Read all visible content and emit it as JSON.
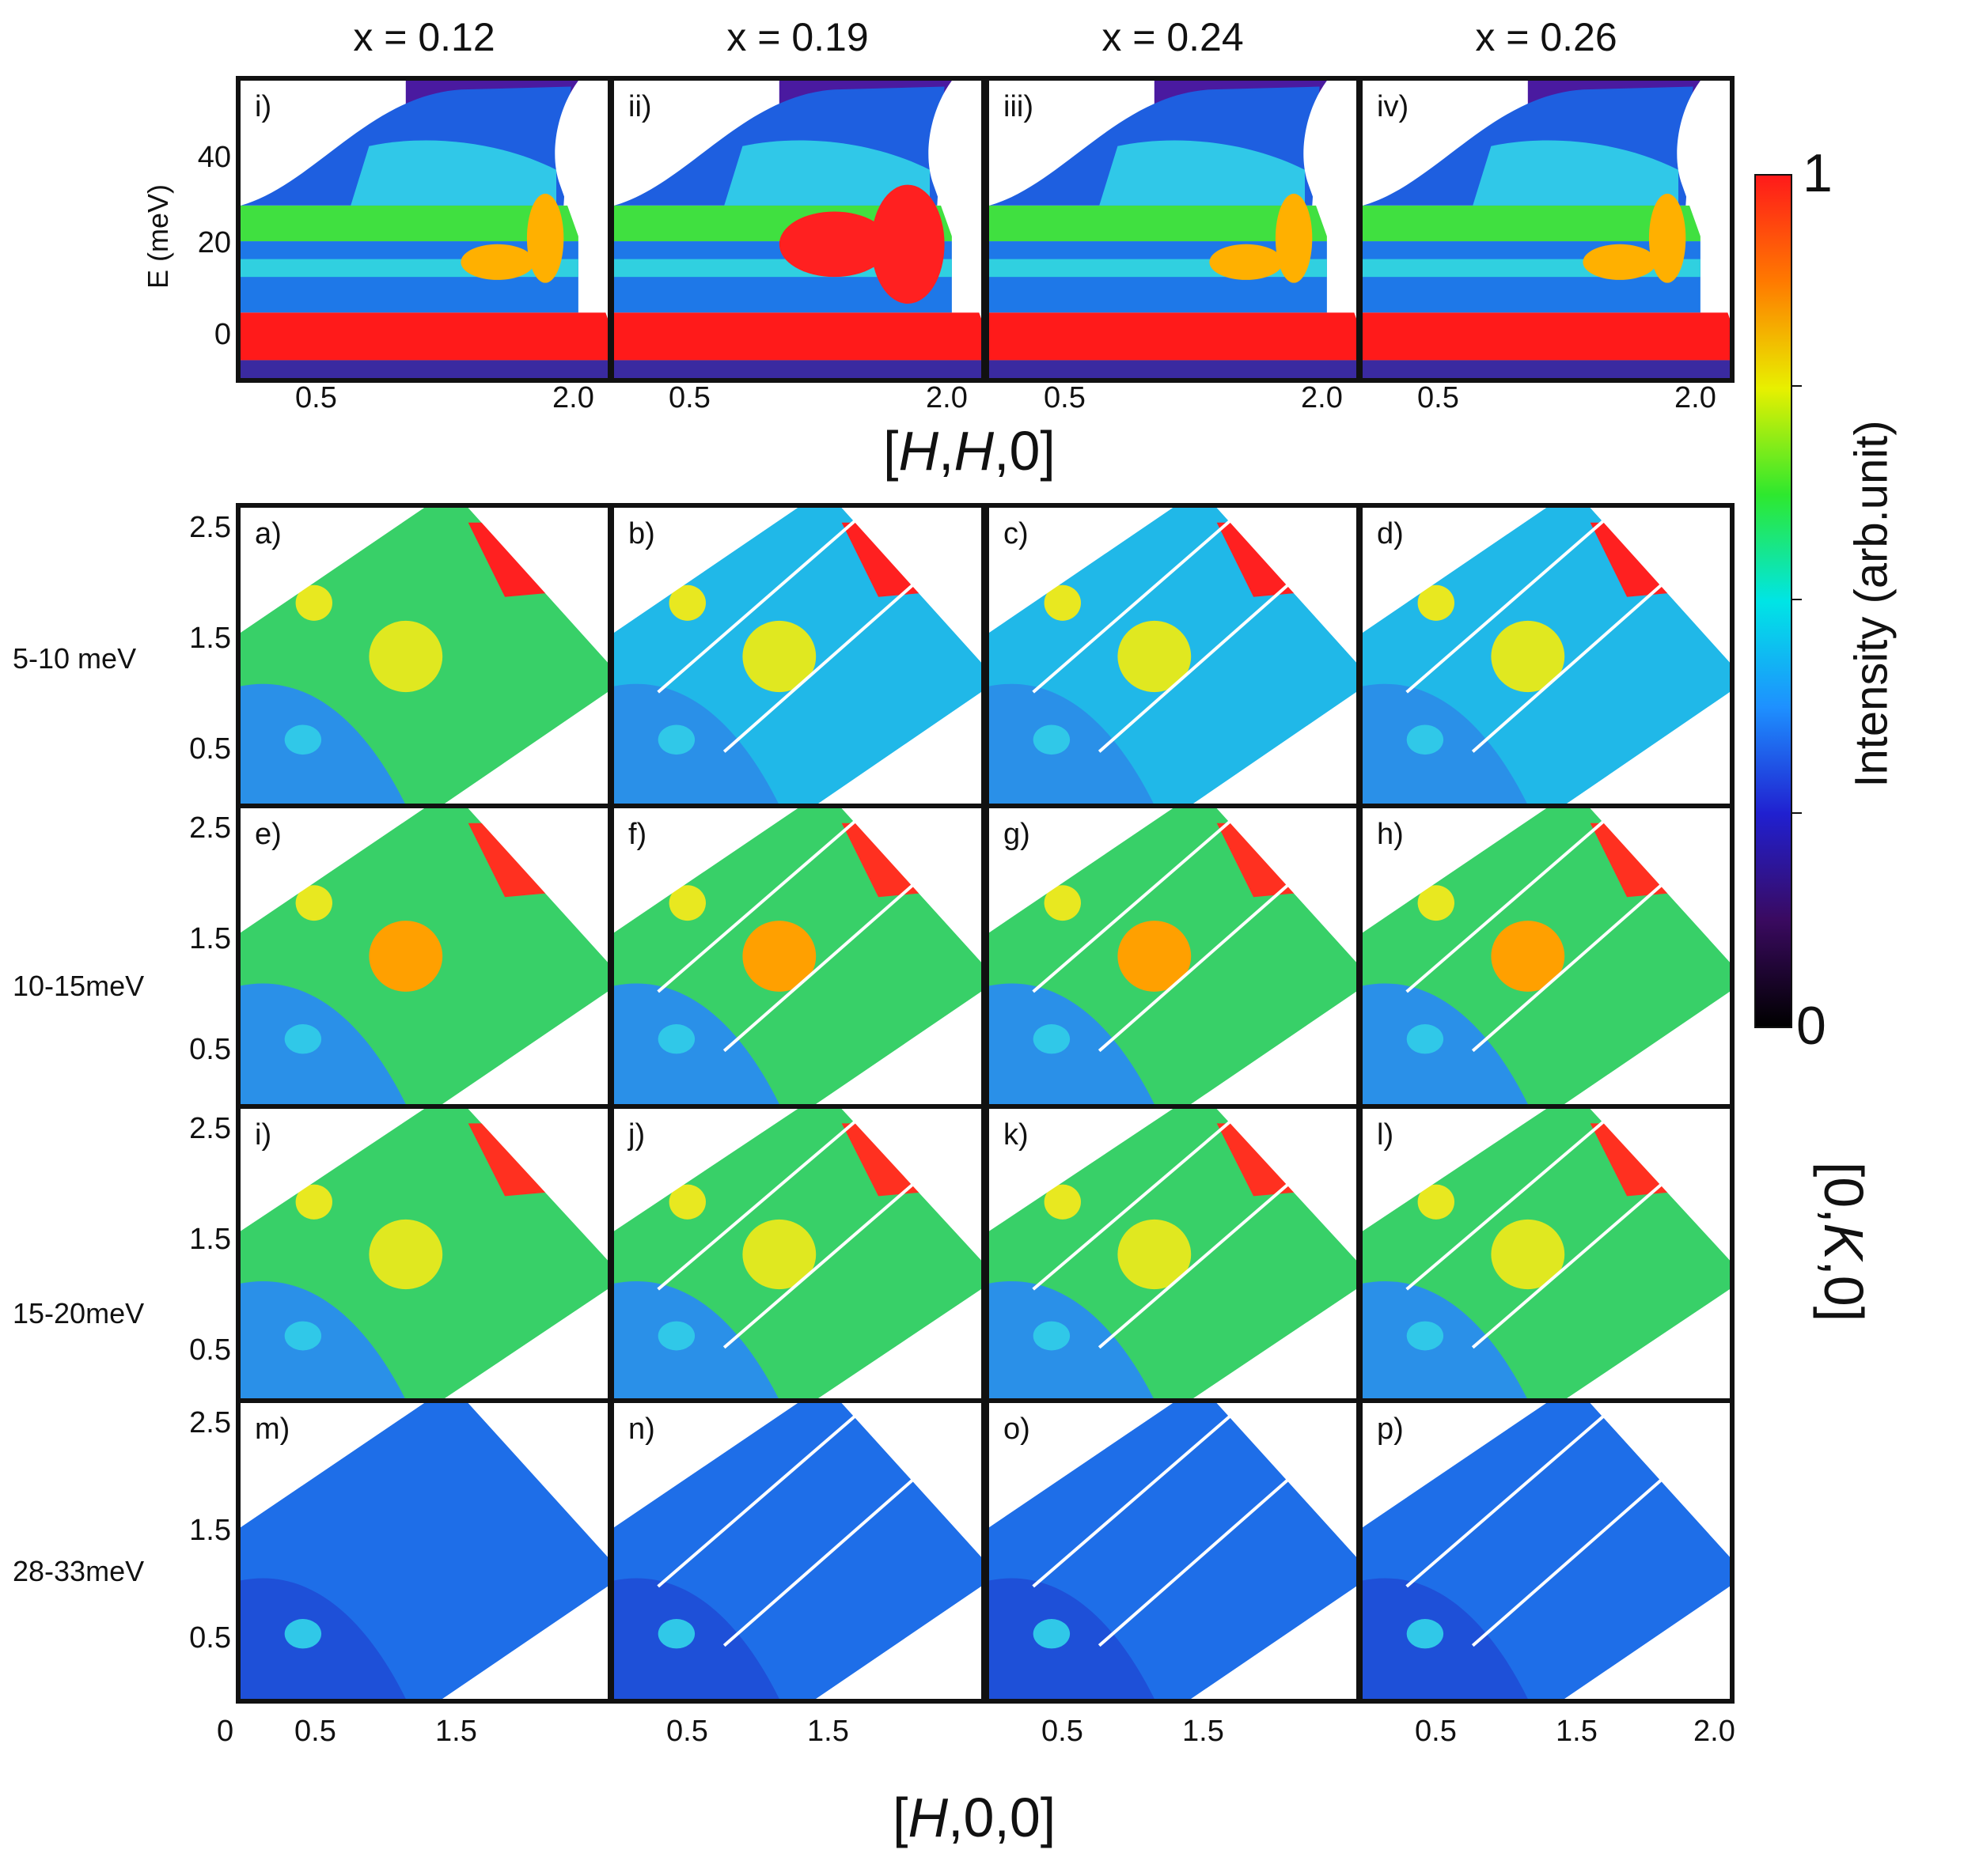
{
  "columns": [
    "x = 0.12",
    "x = 0.19",
    "x = 0.24",
    "x = 0.26"
  ],
  "top_panels": [
    "i)",
    "ii)",
    "iii)",
    "iv)"
  ],
  "top_ylabel": "E (meV)",
  "top_yticks": [
    "40",
    "20",
    "0"
  ],
  "top_xticks": [
    "0.5",
    "2.0"
  ],
  "top_xlabel_parts": [
    "[",
    "H",
    ",",
    "H",
    ",0]"
  ],
  "rows": [
    {
      "energy": "5-10 meV",
      "panels": [
        "a)",
        "b)",
        "c)",
        "d)"
      ]
    },
    {
      "energy": "10-15meV",
      "panels": [
        "e)",
        "f)",
        "g)",
        "h)"
      ]
    },
    {
      "energy": "15-20meV",
      "panels": [
        "i)",
        "j)",
        "k)",
        "l)"
      ]
    },
    {
      "energy": "28-33meV",
      "panels": [
        "m)",
        "n)",
        "o)",
        "p)"
      ]
    }
  ],
  "map_yticks": [
    "2.5",
    "1.5",
    "0.5"
  ],
  "bottom_xticks_first": [
    "0",
    "0.5",
    "1.5"
  ],
  "bottom_xticks": [
    "0.5",
    "1.5"
  ],
  "bottom_xtick_last": "2.0",
  "bottom_xlabel_parts": [
    "[",
    "H",
    ",0,0]"
  ],
  "right_ylabel_parts": [
    "[0,",
    "K",
    ",0]"
  ],
  "colorbar": {
    "max_label": "1",
    "min_label": "0",
    "label": "Intensity (arb.unit)",
    "stops": [
      "#000000",
      "#3a0a60",
      "#2020d0",
      "#1e90ff",
      "#00e5e5",
      "#2ee82e",
      "#e8f000",
      "#ff7a00",
      "#ff1a1a"
    ]
  },
  "chart_data": {
    "type": "heatmap",
    "description_axes": {
      "top_x": "[H,H,0]",
      "top_y": "E (meV)",
      "bottom_x": "[H,0,0]",
      "bottom_y": "[0,K,0]"
    },
    "top_ylim": [
      -10,
      55
    ],
    "map_xlim": [
      0,
      2.0
    ],
    "map_ylim": [
      0,
      2.7
    ],
    "colorscale_range": [
      0,
      1
    ],
    "compositions": [
      0.12,
      0.19,
      0.24,
      0.26
    ],
    "energy_windows": [
      "5-10 meV",
      "10-15meV",
      "15-20meV",
      "28-33meV"
    ]
  }
}
